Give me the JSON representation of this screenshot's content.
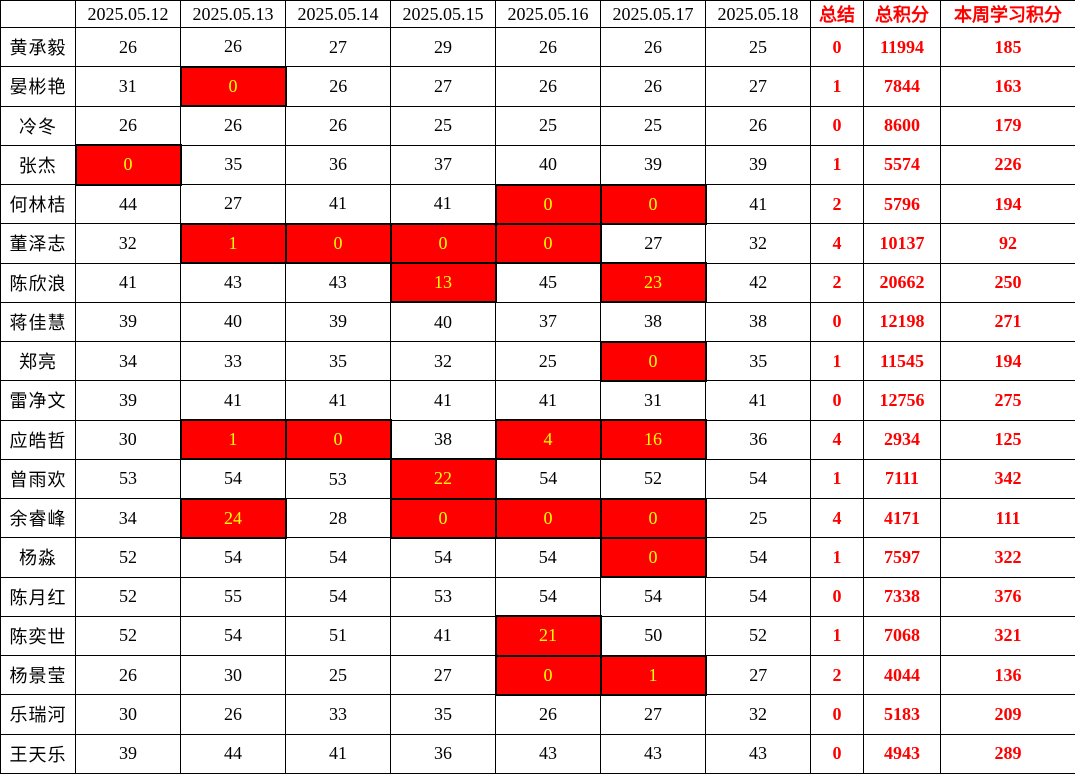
{
  "colors": {
    "highlight_bg": "#FF0000",
    "highlight_text": "#FFFF00",
    "accent_text": "#FF0000",
    "grid_line": "#000000"
  },
  "table": {
    "columns": [
      "",
      "2025.05.12",
      "2025.05.13",
      "2025.05.14",
      "2025.05.15",
      "2025.05.16",
      "2025.05.17",
      "2025.05.18",
      "总结",
      "总积分",
      "本周学习积分"
    ],
    "rows": [
      {
        "name": "黄承毅",
        "days": [
          {
            "v": "26"
          },
          {
            "v": "26"
          },
          {
            "v": "27"
          },
          {
            "v": "29"
          },
          {
            "v": "26"
          },
          {
            "v": "26"
          },
          {
            "v": "25"
          }
        ],
        "summary": "0",
        "total": "11994",
        "week": "185"
      },
      {
        "name": "晏彬艳",
        "days": [
          {
            "v": "31"
          },
          {
            "v": "0",
            "hl": true
          },
          {
            "v": "26"
          },
          {
            "v": "27"
          },
          {
            "v": "26"
          },
          {
            "v": "26"
          },
          {
            "v": "27"
          }
        ],
        "summary": "1",
        "total": "7844",
        "week": "163"
      },
      {
        "name": "冷冬",
        "days": [
          {
            "v": "26"
          },
          {
            "v": "26"
          },
          {
            "v": "26"
          },
          {
            "v": "25"
          },
          {
            "v": "25"
          },
          {
            "v": "25"
          },
          {
            "v": "26"
          }
        ],
        "summary": "0",
        "total": "8600",
        "week": "179"
      },
      {
        "name": "张杰",
        "days": [
          {
            "v": "0",
            "hl": true
          },
          {
            "v": "35"
          },
          {
            "v": "36"
          },
          {
            "v": "37"
          },
          {
            "v": "40"
          },
          {
            "v": "39"
          },
          {
            "v": "39"
          }
        ],
        "summary": "1",
        "total": "5574",
        "week": "226"
      },
      {
        "name": "何林桔",
        "days": [
          {
            "v": "44"
          },
          {
            "v": "27"
          },
          {
            "v": "41"
          },
          {
            "v": "41"
          },
          {
            "v": "0",
            "hl": true
          },
          {
            "v": "0",
            "hl": true
          },
          {
            "v": "41"
          }
        ],
        "summary": "2",
        "total": "5796",
        "week": "194"
      },
      {
        "name": "董泽志",
        "days": [
          {
            "v": "32"
          },
          {
            "v": "1",
            "hl": true
          },
          {
            "v": "0",
            "hl": true
          },
          {
            "v": "0",
            "hl": true
          },
          {
            "v": "0",
            "hl": true
          },
          {
            "v": "27"
          },
          {
            "v": "32"
          }
        ],
        "summary": "4",
        "total": "10137",
        "week": "92"
      },
      {
        "name": "陈欣浪",
        "days": [
          {
            "v": "41"
          },
          {
            "v": "43"
          },
          {
            "v": "43"
          },
          {
            "v": "13",
            "hl": true
          },
          {
            "v": "45"
          },
          {
            "v": "23",
            "hl": true
          },
          {
            "v": "42"
          }
        ],
        "summary": "2",
        "total": "20662",
        "week": "250"
      },
      {
        "name": "蒋佳慧",
        "days": [
          {
            "v": "39"
          },
          {
            "v": "40"
          },
          {
            "v": "39"
          },
          {
            "v": "40"
          },
          {
            "v": "37"
          },
          {
            "v": "38"
          },
          {
            "v": "38"
          }
        ],
        "summary": "0",
        "total": "12198",
        "week": "271"
      },
      {
        "name": "郑亮",
        "days": [
          {
            "v": "34"
          },
          {
            "v": "33"
          },
          {
            "v": "35"
          },
          {
            "v": "32"
          },
          {
            "v": "25"
          },
          {
            "v": "0",
            "hl": true
          },
          {
            "v": "35"
          }
        ],
        "summary": "1",
        "total": "11545",
        "week": "194"
      },
      {
        "name": "雷净文",
        "days": [
          {
            "v": "39"
          },
          {
            "v": "41"
          },
          {
            "v": "41"
          },
          {
            "v": "41"
          },
          {
            "v": "41"
          },
          {
            "v": "31"
          },
          {
            "v": "41"
          }
        ],
        "summary": "0",
        "total": "12756",
        "week": "275"
      },
      {
        "name": "应皓哲",
        "days": [
          {
            "v": "30"
          },
          {
            "v": "1",
            "hl": true
          },
          {
            "v": "0",
            "hl": true
          },
          {
            "v": "38"
          },
          {
            "v": "4",
            "hl": true
          },
          {
            "v": "16",
            "hl": true
          },
          {
            "v": "36"
          }
        ],
        "summary": "4",
        "total": "2934",
        "week": "125"
      },
      {
        "name": "曾雨欢",
        "days": [
          {
            "v": "53"
          },
          {
            "v": "54"
          },
          {
            "v": "53"
          },
          {
            "v": "22",
            "hl": true
          },
          {
            "v": "54"
          },
          {
            "v": "52"
          },
          {
            "v": "54"
          }
        ],
        "summary": "1",
        "total": "7111",
        "week": "342"
      },
      {
        "name": "余睿峰",
        "days": [
          {
            "v": "34"
          },
          {
            "v": "24",
            "hl": true
          },
          {
            "v": "28"
          },
          {
            "v": "0",
            "hl": true
          },
          {
            "v": "0",
            "hl": true
          },
          {
            "v": "0",
            "hl": true
          },
          {
            "v": "25"
          }
        ],
        "summary": "4",
        "total": "4171",
        "week": "111"
      },
      {
        "name": "杨淼",
        "days": [
          {
            "v": "52"
          },
          {
            "v": "54"
          },
          {
            "v": "54"
          },
          {
            "v": "54"
          },
          {
            "v": "54"
          },
          {
            "v": "0",
            "hl": true
          },
          {
            "v": "54"
          }
        ],
        "summary": "1",
        "total": "7597",
        "week": "322"
      },
      {
        "name": "陈月红",
        "days": [
          {
            "v": "52"
          },
          {
            "v": "55"
          },
          {
            "v": "54"
          },
          {
            "v": "53"
          },
          {
            "v": "54"
          },
          {
            "v": "54"
          },
          {
            "v": "54"
          }
        ],
        "summary": "0",
        "total": "7338",
        "week": "376"
      },
      {
        "name": "陈奕世",
        "days": [
          {
            "v": "52"
          },
          {
            "v": "54"
          },
          {
            "v": "51"
          },
          {
            "v": "41"
          },
          {
            "v": "21",
            "hl": true
          },
          {
            "v": "50"
          },
          {
            "v": "52"
          }
        ],
        "summary": "1",
        "total": "7068",
        "week": "321"
      },
      {
        "name": "杨景莹",
        "days": [
          {
            "v": "26"
          },
          {
            "v": "30"
          },
          {
            "v": "25"
          },
          {
            "v": "27"
          },
          {
            "v": "0",
            "hl": true
          },
          {
            "v": "1",
            "hl": true
          },
          {
            "v": "27"
          }
        ],
        "summary": "2",
        "total": "4044",
        "week": "136"
      },
      {
        "name": "乐瑞河",
        "days": [
          {
            "v": "30"
          },
          {
            "v": "26"
          },
          {
            "v": "33"
          },
          {
            "v": "35"
          },
          {
            "v": "26"
          },
          {
            "v": "27"
          },
          {
            "v": "32"
          }
        ],
        "summary": "0",
        "total": "5183",
        "week": "209"
      },
      {
        "name": "王天乐",
        "days": [
          {
            "v": "39"
          },
          {
            "v": "44"
          },
          {
            "v": "41"
          },
          {
            "v": "36"
          },
          {
            "v": "43"
          },
          {
            "v": "43"
          },
          {
            "v": "43"
          }
        ],
        "summary": "0",
        "total": "4943",
        "week": "289"
      }
    ]
  }
}
